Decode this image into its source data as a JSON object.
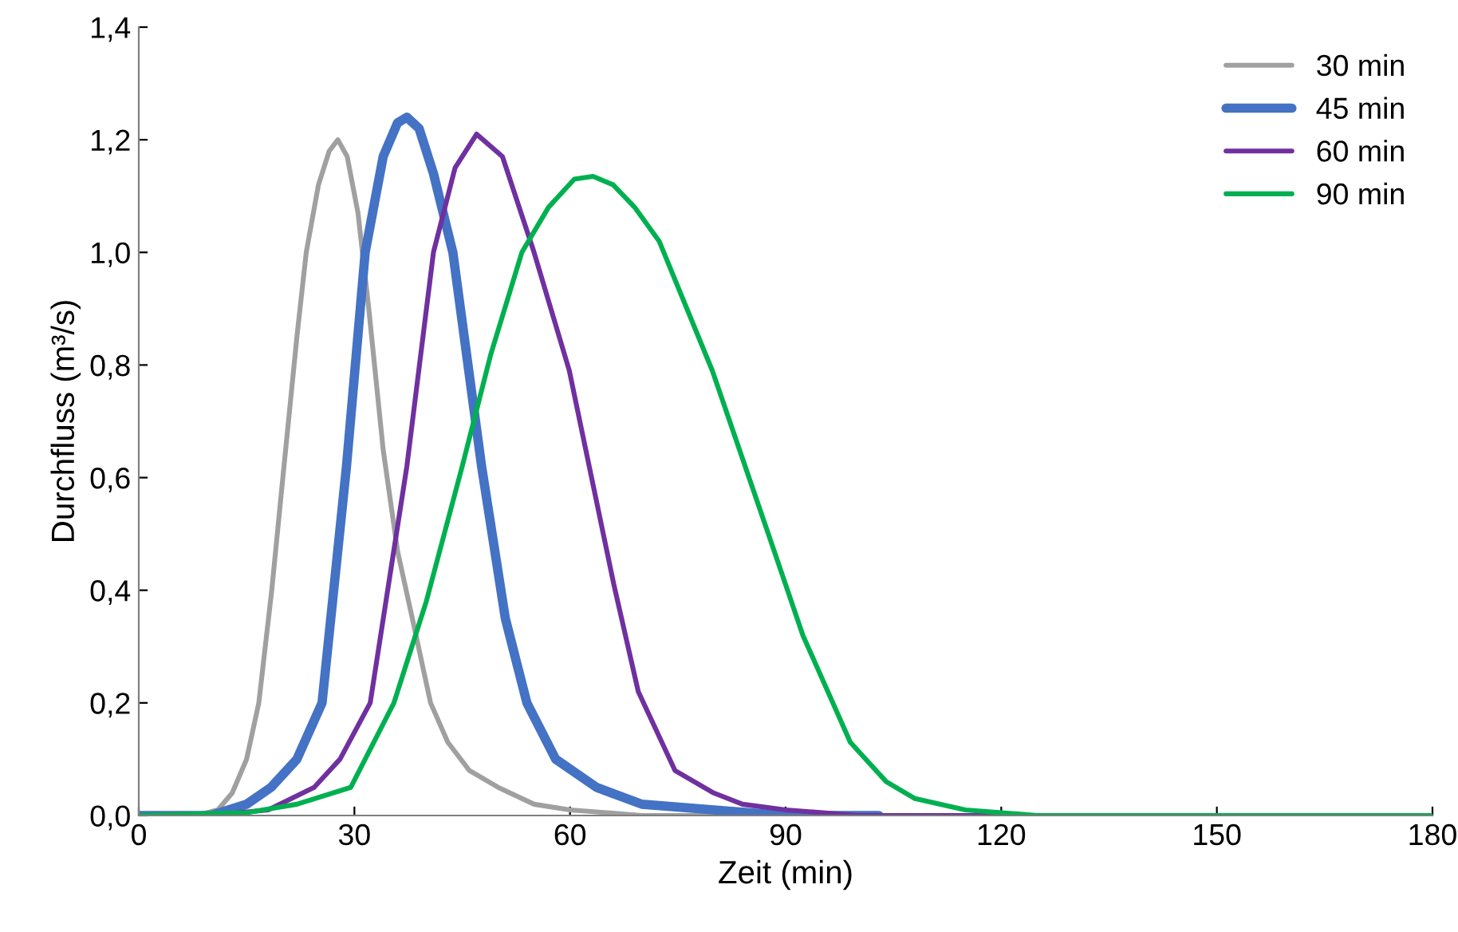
{
  "chart_data": {
    "type": "line",
    "xlabel": "Zeit (min)",
    "ylabel": "Durchfluss (m³/s)",
    "xlim": [
      0,
      180
    ],
    "xticks": [
      0,
      30,
      60,
      90,
      120,
      150,
      180
    ],
    "ylim": [
      0,
      1.4
    ],
    "yticks": [
      {
        "value": 0,
        "label": "0,0"
      },
      {
        "value": 0.2,
        "label": "0,2"
      },
      {
        "value": 0.4,
        "label": "0,4"
      },
      {
        "value": 0.6,
        "label": "0,6"
      },
      {
        "value": 0.8,
        "label": "0,8"
      },
      {
        "value": 1.0,
        "label": "1,0"
      },
      {
        "value": 1.2,
        "label": "1,2"
      },
      {
        "value": 1.4,
        "label": "1,4"
      }
    ],
    "grid": false,
    "legend": "top right",
    "marker": "none",
    "line_style": "solid",
    "series": [
      {
        "name": "30 min",
        "color": "#a0a0a0",
        "x": [
          0,
          8,
          11,
          13,
          15,
          16.7,
          18.5,
          20.2,
          22,
          23.3,
          25,
          26.5,
          27.7,
          29,
          30.5,
          32,
          34,
          36,
          38.4,
          40.6,
          43,
          46,
          50,
          55,
          60,
          70,
          80
        ],
        "values": [
          0,
          0,
          0.01,
          0.04,
          0.1,
          0.2,
          0.4,
          0.62,
          0.85,
          1.0,
          1.12,
          1.18,
          1.2,
          1.17,
          1.07,
          0.9,
          0.65,
          0.47,
          0.33,
          0.2,
          0.13,
          0.08,
          0.05,
          0.02,
          0.01,
          0,
          0
        ]
      },
      {
        "name": "45 min",
        "color": "#4472c4",
        "x": [
          0,
          10,
          15,
          18.4,
          22,
          25.5,
          28.9,
          31.5,
          34,
          36,
          37.3,
          39,
          41,
          43.7,
          47.7,
          51,
          54,
          58,
          63.7,
          70,
          80,
          90,
          103
        ],
        "values": [
          0,
          0,
          0.02,
          0.05,
          0.1,
          0.2,
          0.62,
          1.0,
          1.17,
          1.23,
          1.24,
          1.22,
          1.14,
          1.0,
          0.62,
          0.35,
          0.2,
          0.1,
          0.05,
          0.02,
          0.01,
          0,
          0
        ]
      },
      {
        "name": "60 min",
        "color": "#7030a0",
        "x": [
          0,
          10,
          18,
          24.4,
          28,
          32.2,
          37.3,
          41,
          44,
          47,
          50.6,
          55,
          59.9,
          66.1,
          69.5,
          74.6,
          80,
          84,
          90,
          100,
          120,
          150,
          180
        ],
        "values": [
          0,
          0,
          0.01,
          0.05,
          0.1,
          0.2,
          0.62,
          1.0,
          1.15,
          1.21,
          1.17,
          1.0,
          0.79,
          0.41,
          0.22,
          0.08,
          0.04,
          0.02,
          0.01,
          0,
          0,
          0,
          0
        ]
      },
      {
        "name": "90 min",
        "color": "#00b050",
        "x": [
          0,
          15,
          22,
          29.5,
          35.5,
          40,
          45,
          49,
          53.3,
          57,
          60.6,
          63.2,
          66,
          69,
          72.4,
          79.8,
          87.6,
          92.4,
          99,
          104,
          108,
          115,
          125,
          150,
          180
        ],
        "values": [
          0,
          0.005,
          0.02,
          0.05,
          0.2,
          0.38,
          0.62,
          0.82,
          1.0,
          1.08,
          1.13,
          1.135,
          1.12,
          1.08,
          1.02,
          0.79,
          0.5,
          0.32,
          0.13,
          0.06,
          0.03,
          0.01,
          0,
          0,
          0
        ]
      }
    ]
  }
}
